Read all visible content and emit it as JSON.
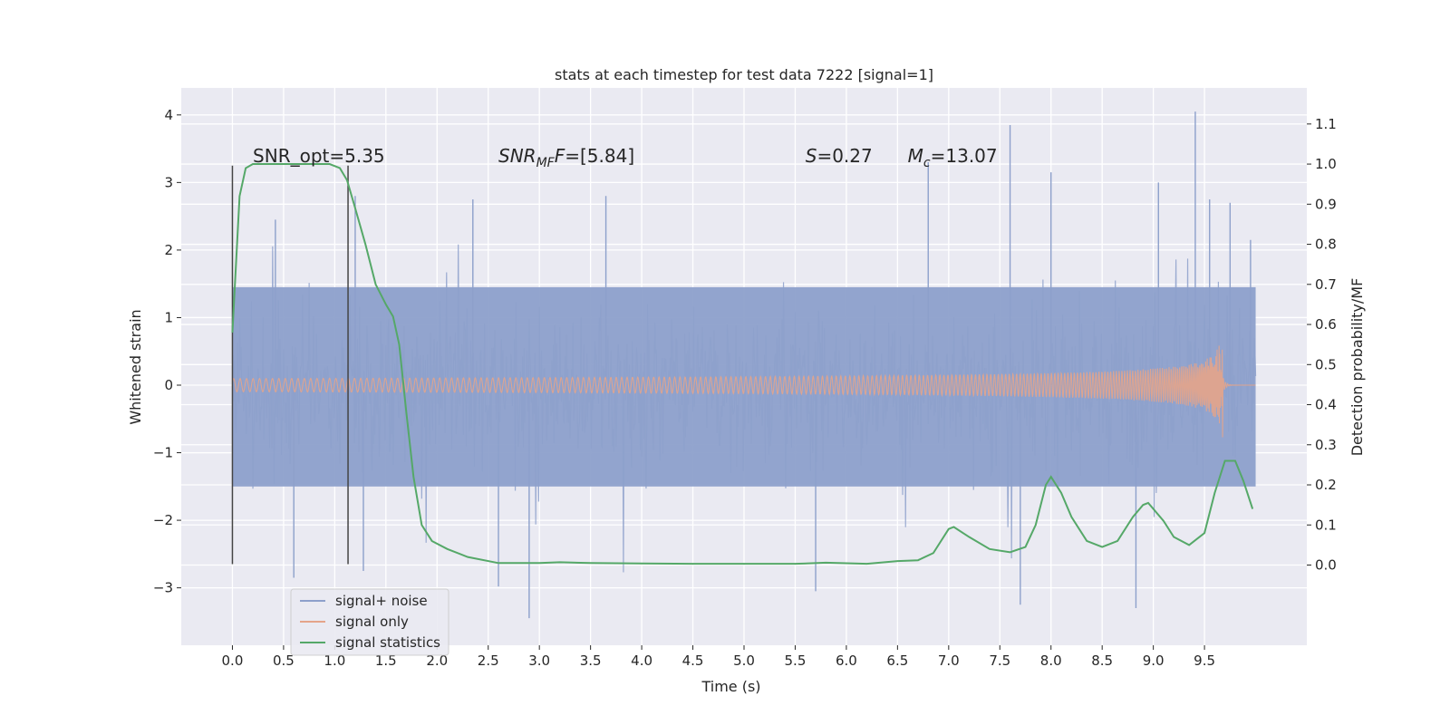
{
  "chart_data": {
    "type": "line",
    "title": "stats at each timestep for test data 7222 [signal=1]",
    "xlabel": "Time (s)",
    "ylabel": "Whitened strain",
    "ylabel_right": "Detection probability/MF",
    "xlim": [
      -0.5,
      10.5
    ],
    "ylim": [
      -3.85,
      4.4
    ],
    "ylim_right": [
      -0.2,
      1.19
    ],
    "xticks": [
      0.0,
      0.5,
      1.0,
      1.5,
      2.0,
      2.5,
      3.0,
      3.5,
      4.0,
      4.5,
      5.0,
      5.5,
      6.0,
      6.5,
      7.0,
      7.5,
      8.0,
      8.5,
      9.0,
      9.5
    ],
    "xtick_labels": [
      "0.0",
      "0.5",
      "1.0",
      "1.5",
      "2.0",
      "2.5",
      "3.0",
      "3.5",
      "4.0",
      "4.5",
      "5.0",
      "5.5",
      "6.0",
      "6.5",
      "7.0",
      "7.5",
      "8.0",
      "8.5",
      "9.0",
      "9.5"
    ],
    "yticks": [
      -3,
      -2,
      -1,
      0,
      1,
      2,
      3,
      4
    ],
    "ytick_labels": [
      "−3",
      "−2",
      "−1",
      "0",
      "1",
      "2",
      "3",
      "4"
    ],
    "yticks_right": [
      0.0,
      0.1,
      0.2,
      0.3,
      0.4,
      0.5,
      0.6,
      0.7,
      0.8,
      0.9,
      1.0,
      1.1
    ],
    "ytick_right_labels": [
      "0.0",
      "0.1",
      "0.2",
      "0.3",
      "0.4",
      "0.5",
      "0.6",
      "0.7",
      "0.8",
      "0.9",
      "1.0",
      "1.1"
    ],
    "grid": true,
    "legend": {
      "placement": "lower-left",
      "entries": [
        "signal+ noise",
        "signal only",
        "signal statistics"
      ]
    },
    "annotations": [
      {
        "text": "SNR_opt=5.35",
        "x": 0.2,
        "y": 3.3
      },
      {
        "text": "SNR",
        "sub": "MF",
        "suffix": "F=[5.84]",
        "x": 2.6,
        "y": 3.3
      },
      {
        "text": "S=0.27",
        "x": 5.6,
        "y": 3.3
      },
      {
        "text": "M",
        "sub": "c",
        "suffix": "=13.07",
        "x": 6.6,
        "y": 3.3
      }
    ],
    "vlines": [
      {
        "x": 0.0,
        "ymin": -2.65,
        "ymax": 3.25
      },
      {
        "x": 1.13,
        "ymin": -2.65,
        "ymax": 3.25
      }
    ],
    "series": [
      {
        "name": "signal+ noise",
        "color": "#8da0cb",
        "x_range": [
          0.0,
          10.0
        ],
        "typical_band": [
          -1.5,
          1.45
        ],
        "spikes": [
          {
            "x": 0.42,
            "y": 2.45
          },
          {
            "x": 0.6,
            "y": -2.85
          },
          {
            "x": 1.2,
            "y": 2.8
          },
          {
            "x": 1.28,
            "y": -2.75
          },
          {
            "x": 2.35,
            "y": 2.75
          },
          {
            "x": 2.6,
            "y": -2.98
          },
          {
            "x": 2.9,
            "y": -3.45
          },
          {
            "x": 3.65,
            "y": 2.8
          },
          {
            "x": 5.7,
            "y": -3.05
          },
          {
            "x": 6.8,
            "y": 3.3
          },
          {
            "x": 7.6,
            "y": 3.85
          },
          {
            "x": 7.7,
            "y": -3.25
          },
          {
            "x": 8.0,
            "y": 3.15
          },
          {
            "x": 8.83,
            "y": -3.3
          },
          {
            "x": 9.05,
            "y": 3.0
          },
          {
            "x": 9.41,
            "y": 4.05
          },
          {
            "x": 9.55,
            "y": 2.75
          },
          {
            "x": 9.75,
            "y": 2.7
          },
          {
            "x": 9.95,
            "y": 2.15
          }
        ]
      },
      {
        "name": "signal only",
        "color": "#e5a48a",
        "x_range": [
          0.0,
          10.0
        ],
        "merger_time": 9.68,
        "peak_amplitude": 0.85
      },
      {
        "name": "signal statistics",
        "color": "#55a868",
        "axis": "right",
        "x": [
          0.0,
          0.07,
          0.13,
          0.2,
          0.3,
          0.5,
          0.8,
          0.95,
          1.05,
          1.12,
          1.2,
          1.3,
          1.4,
          1.5,
          1.57,
          1.63,
          1.7,
          1.77,
          1.85,
          1.95,
          2.1,
          2.3,
          2.6,
          3.0,
          3.2,
          3.5,
          4.0,
          4.5,
          5.0,
          5.5,
          5.8,
          6.2,
          6.5,
          6.7,
          6.85,
          7.0,
          7.05,
          7.2,
          7.4,
          7.6,
          7.75,
          7.85,
          7.95,
          8.0,
          8.1,
          8.2,
          8.35,
          8.5,
          8.65,
          8.8,
          8.9,
          8.95,
          9.1,
          9.2,
          9.35,
          9.5,
          9.6,
          9.7,
          9.8,
          9.88,
          9.97
        ],
        "values": [
          0.58,
          0.92,
          0.99,
          1.0,
          1.0,
          1.0,
          1.0,
          1.0,
          0.99,
          0.96,
          0.89,
          0.8,
          0.7,
          0.65,
          0.62,
          0.55,
          0.38,
          0.22,
          0.1,
          0.06,
          0.04,
          0.02,
          0.005,
          0.005,
          0.007,
          0.005,
          0.004,
          0.003,
          0.003,
          0.003,
          0.006,
          0.003,
          0.01,
          0.012,
          0.03,
          0.09,
          0.095,
          0.07,
          0.04,
          0.032,
          0.045,
          0.1,
          0.2,
          0.22,
          0.18,
          0.12,
          0.06,
          0.045,
          0.06,
          0.12,
          0.15,
          0.155,
          0.11,
          0.07,
          0.05,
          0.08,
          0.18,
          0.26,
          0.26,
          0.21,
          0.14
        ]
      }
    ]
  }
}
